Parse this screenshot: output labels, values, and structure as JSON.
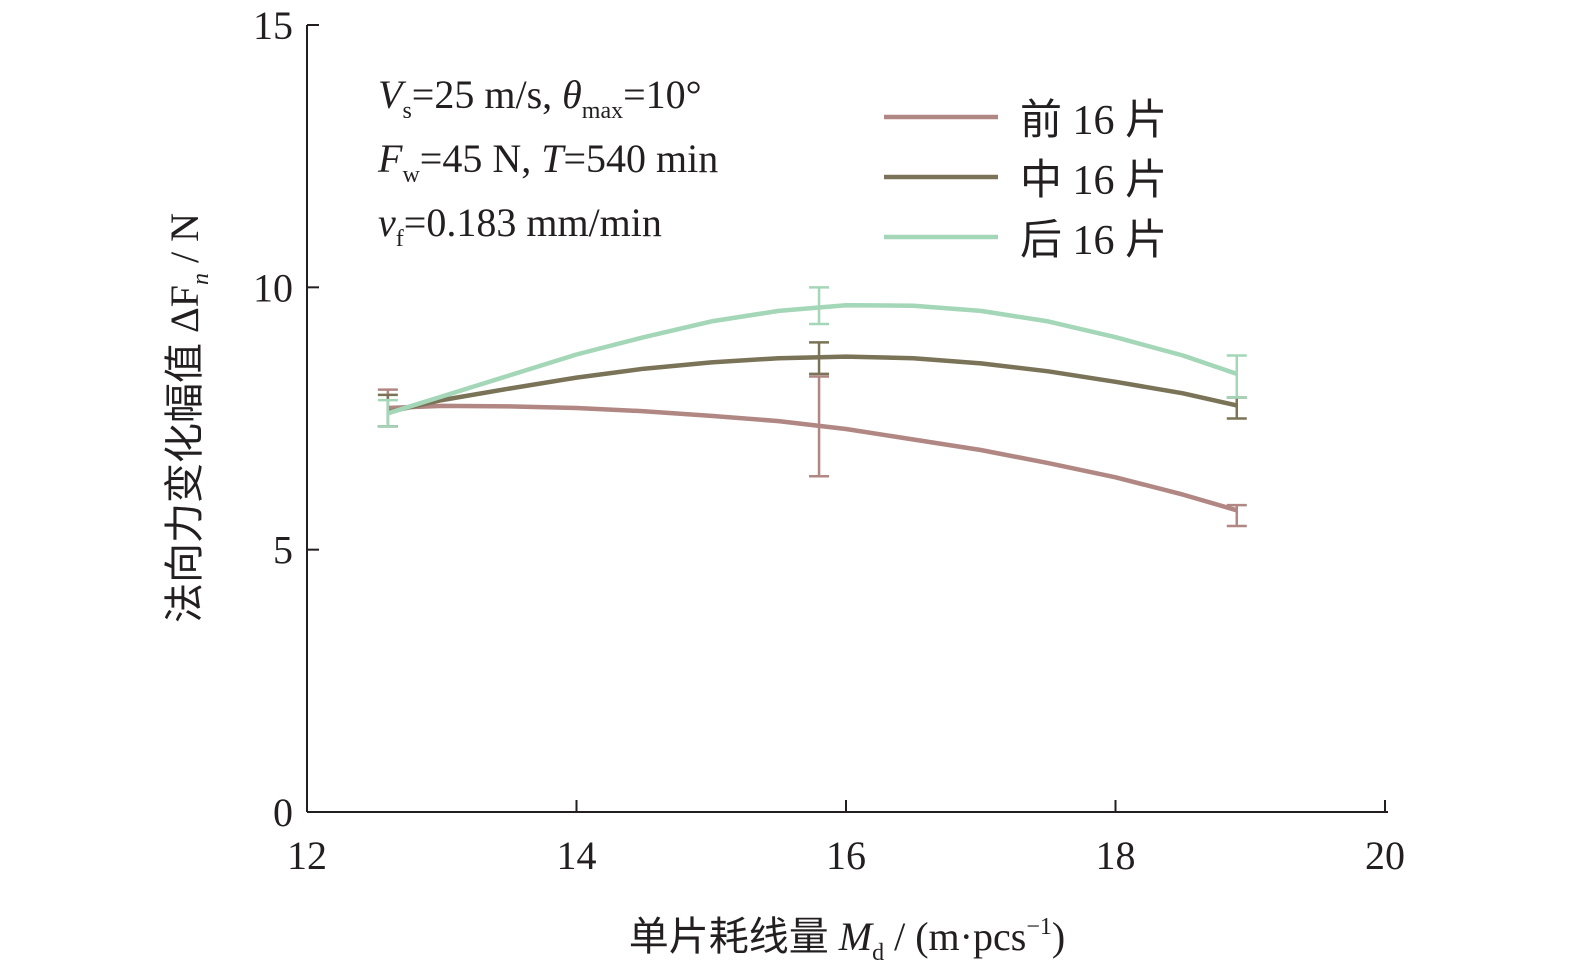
{
  "chart_data": {
    "type": "line",
    "xlabel": {
      "main": "单片耗线量 ",
      "sym": "M",
      "sub": "d",
      "tail": " / (m·pcs",
      "sup": "−1",
      "close": ")"
    },
    "ylabel": {
      "main": "法向力变化幅值 ΔF",
      "sub": "n",
      "tail": " / N"
    },
    "xlim": [
      12,
      20
    ],
    "ylim": [
      0,
      15
    ],
    "xticks": [
      12,
      14,
      16,
      18,
      20
    ],
    "yticks": [
      0,
      5,
      10,
      15
    ],
    "legend_position": "top-right",
    "series": [
      {
        "name": "前 16 片",
        "color": "#b08783",
        "x": [
          12.6,
          15.8,
          18.9
        ],
        "y": [
          7.7,
          7.35,
          5.65
        ],
        "error": [
          0.35,
          0.95,
          0.2
        ],
        "curve": [
          [
            12.6,
            7.7
          ],
          [
            13,
            7.74
          ],
          [
            13.5,
            7.73
          ],
          [
            14,
            7.7
          ],
          [
            14.5,
            7.64
          ],
          [
            15,
            7.55
          ],
          [
            15.5,
            7.45
          ],
          [
            16,
            7.3
          ],
          [
            16.5,
            7.1
          ],
          [
            17,
            6.9
          ],
          [
            17.5,
            6.65
          ],
          [
            18,
            6.38
          ],
          [
            18.5,
            6.05
          ],
          [
            18.9,
            5.75
          ]
        ]
      },
      {
        "name": "中 16 片",
        "color": "#7a7358",
        "x": [
          12.6,
          15.8,
          18.9
        ],
        "y": [
          7.65,
          8.65,
          7.7
        ],
        "error": [
          0.3,
          0.3,
          0.2
        ],
        "curve": [
          [
            12.6,
            7.62
          ],
          [
            13,
            7.85
          ],
          [
            13.5,
            8.07
          ],
          [
            14,
            8.28
          ],
          [
            14.5,
            8.45
          ],
          [
            15,
            8.57
          ],
          [
            15.5,
            8.65
          ],
          [
            16,
            8.68
          ],
          [
            16.5,
            8.65
          ],
          [
            17,
            8.55
          ],
          [
            17.5,
            8.4
          ],
          [
            18,
            8.2
          ],
          [
            18.5,
            7.98
          ],
          [
            18.9,
            7.75
          ]
        ]
      },
      {
        "name": "后 16 片",
        "color": "#a4d6b8",
        "x": [
          12.6,
          15.8,
          18.9
        ],
        "y": [
          7.6,
          9.65,
          8.3
        ],
        "error": [
          0.25,
          0.35,
          0.4
        ],
        "curve": [
          [
            12.6,
            7.6
          ],
          [
            13,
            7.92
          ],
          [
            13.5,
            8.32
          ],
          [
            14,
            8.72
          ],
          [
            14.5,
            9.05
          ],
          [
            15,
            9.35
          ],
          [
            15.5,
            9.55
          ],
          [
            16,
            9.66
          ],
          [
            16.5,
            9.65
          ],
          [
            17,
            9.55
          ],
          [
            17.5,
            9.35
          ],
          [
            18,
            9.05
          ],
          [
            18.5,
            8.7
          ],
          [
            18.9,
            8.35
          ]
        ]
      }
    ],
    "annotation": {
      "line1": {
        "a_sym": "V",
        "a_sub": "s",
        "a_val": "=25 m/s, ",
        "b_sym": "θ",
        "b_sub": "max",
        "b_val": "=10°"
      },
      "line2": {
        "a_sym": "F",
        "a_sub": "w",
        "a_val": "=45 N, ",
        "b_sym": "T",
        "b_val": "=540 min"
      },
      "line3": {
        "a_sym": "v",
        "a_sub": "f",
        "a_val": "=0.183 mm/min"
      }
    }
  }
}
